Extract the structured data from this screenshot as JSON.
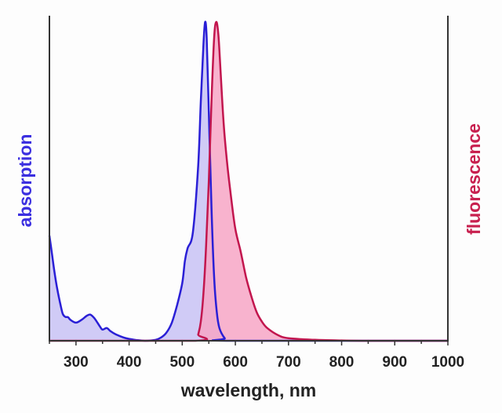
{
  "chart_data": {
    "type": "area",
    "title": "",
    "xlabel": "wavelength, nm",
    "ylabel_left": "absorption",
    "ylabel_right": "fluorescence",
    "xlim": [
      250,
      1000
    ],
    "ylim": [
      0,
      1
    ],
    "xticks": [
      300,
      400,
      500,
      600,
      700,
      800,
      900,
      1000
    ],
    "grid": false,
    "colors": {
      "absorption_line": "#2a1fd6",
      "absorption_fill": "#c8c2f4",
      "fluorescence_line": "#c2164e",
      "fluorescence_fill": "#f7a6c6",
      "ylabel_left": "#3b2fe0",
      "ylabel_right": "#c8204f"
    },
    "series": [
      {
        "name": "absorption",
        "x": [
          250,
          255,
          260,
          265,
          270,
          275,
          280,
          285,
          290,
          300,
          310,
          320,
          327,
          335,
          345,
          350,
          358,
          365,
          375,
          390,
          400,
          415,
          430,
          450,
          460,
          470,
          480,
          490,
          500,
          505,
          510,
          520,
          530,
          535,
          540,
          543,
          546,
          550,
          555,
          560,
          565,
          570,
          580,
          590,
          1000
        ],
        "y": [
          0.33,
          0.27,
          0.21,
          0.16,
          0.12,
          0.085,
          0.075,
          0.074,
          0.065,
          0.057,
          0.065,
          0.078,
          0.082,
          0.07,
          0.045,
          0.035,
          0.04,
          0.03,
          0.02,
          0.01,
          0.006,
          0.002,
          0,
          0.003,
          0.01,
          0.025,
          0.055,
          0.11,
          0.18,
          0.25,
          0.29,
          0.34,
          0.55,
          0.75,
          0.93,
          1.0,
          0.95,
          0.72,
          0.42,
          0.2,
          0.09,
          0.04,
          0.008,
          0,
          0
        ]
      },
      {
        "name": "fluorescence",
        "x": [
          250,
          525,
          530,
          535,
          540,
          545,
          550,
          555,
          560,
          564,
          568,
          572,
          578,
          585,
          592,
          600,
          610,
          620,
          630,
          640,
          650,
          660,
          680,
          700,
          750,
          800,
          850,
          1000
        ],
        "y": [
          0,
          0,
          0.02,
          0.06,
          0.15,
          0.3,
          0.5,
          0.75,
          0.95,
          1.0,
          0.96,
          0.85,
          0.68,
          0.55,
          0.45,
          0.35,
          0.28,
          0.2,
          0.14,
          0.09,
          0.06,
          0.04,
          0.018,
          0.008,
          0.003,
          0.001,
          0,
          0
        ]
      }
    ]
  }
}
